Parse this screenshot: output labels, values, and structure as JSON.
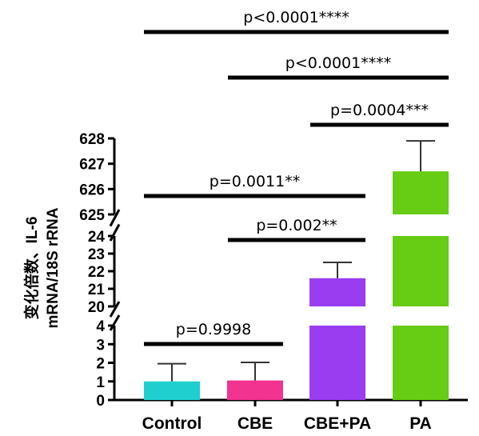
{
  "chart_data": {
    "type": "bar",
    "categories": [
      "Control",
      "CBE",
      "CBE+PA",
      "PA"
    ],
    "values": [
      1.0,
      1.05,
      21.6,
      626.7
    ],
    "error_upper": [
      1.95,
      2.02,
      22.5,
      627.9
    ],
    "bar_colors": [
      "#1fcfcf",
      "#f2338f",
      "#9a3cf0",
      "#66cc14"
    ],
    "ylabel_line1": "变化倍数、IL-6",
    "ylabel_line2": "mRNA/18S rRNA",
    "xlabel": "",
    "broken_axis_segments": [
      {
        "range": [
          0,
          4
        ],
        "ticks": [
          0,
          1,
          2,
          3,
          4
        ]
      },
      {
        "range": [
          20,
          24
        ],
        "ticks": [
          20,
          21,
          22,
          23,
          24
        ]
      },
      {
        "range": [
          625,
          628
        ],
        "ticks": [
          625,
          626,
          627,
          628
        ]
      }
    ],
    "comparisons": [
      {
        "text": "p<0.0001****",
        "from": "Control",
        "to": "PA"
      },
      {
        "text": "p<0.0001****",
        "from": "CBE",
        "to": "PA"
      },
      {
        "text": "p=0.0004***",
        "from": "CBE+PA",
        "to": "PA"
      },
      {
        "text": "p=0.0011**",
        "from": "Control",
        "to": "CBE+PA"
      },
      {
        "text": "p=0.002**",
        "from": "CBE",
        "to": "CBE+PA"
      },
      {
        "text": "p=0.9998",
        "from": "Control",
        "to": "CBE"
      }
    ]
  }
}
